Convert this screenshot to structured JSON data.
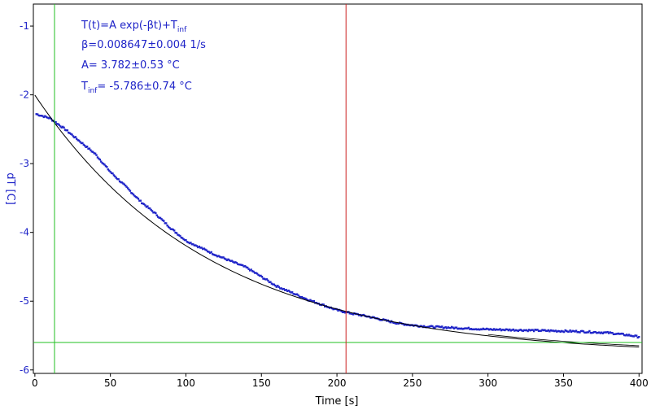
{
  "chart_data": {
    "type": "scatter",
    "title": "",
    "xlabel": "Time [s]",
    "ylabel": "dT [C]",
    "xlim": [
      -1,
      402
    ],
    "ylim": [
      -6.05,
      -0.68
    ],
    "xticks": [
      0,
      50,
      100,
      150,
      200,
      250,
      300,
      350,
      400
    ],
    "yticks": [
      -1,
      -2,
      -3,
      -4,
      -5,
      -6
    ],
    "grid": false,
    "annotations": {
      "line1": "T(t)=A exp(-βt)+T",
      "line1_sub": "inf",
      "line2": "β=0.008647±0.004 1/s",
      "line3": "A= 3.782±0.53 °C",
      "line4_main": "T",
      "line4_sub": "inf",
      "line4_rest": "= -5.786±0.74 °C"
    },
    "fit": {
      "A": 3.782,
      "beta": 0.008647,
      "Tinf": -5.786
    },
    "markers": {
      "green_vertical_x": 13,
      "green_horizontal_y": -5.6,
      "red_vertical_x": 206
    },
    "series": [
      {
        "type": "scatter",
        "x": [
          1,
          10,
          20,
          30,
          40,
          50,
          60,
          70,
          80,
          90,
          100,
          120,
          140,
          160,
          180,
          200,
          210,
          220,
          230,
          240,
          250,
          260,
          280,
          300,
          320,
          340,
          360,
          380,
          395,
          400
        ],
        "y": [
          -2.28,
          -2.34,
          -2.5,
          -2.68,
          -2.86,
          -3.12,
          -3.33,
          -3.55,
          -3.73,
          -3.94,
          -4.12,
          -4.33,
          -4.51,
          -4.78,
          -4.97,
          -5.13,
          -5.18,
          -5.22,
          -5.27,
          -5.32,
          -5.35,
          -5.37,
          -5.39,
          -5.41,
          -5.42,
          -5.43,
          -5.44,
          -5.46,
          -5.5,
          -5.52
        ],
        "color": "#1f24c8"
      }
    ],
    "colors": {
      "data": "#1f24c8",
      "fit": "#000000",
      "green": "#22c022",
      "red": "#cc2222"
    }
  }
}
